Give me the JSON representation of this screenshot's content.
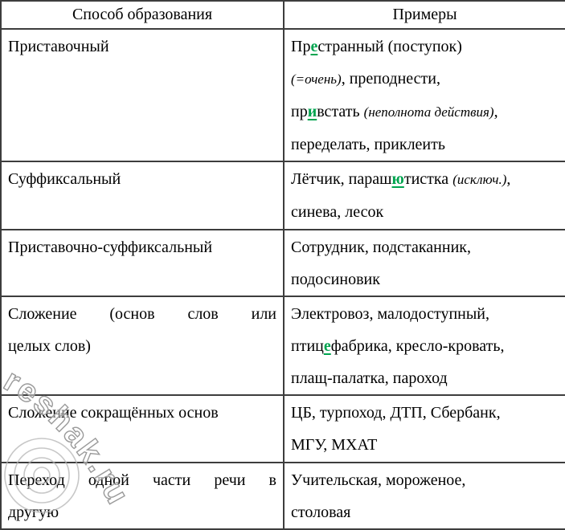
{
  "header": {
    "method_label": "Способ образования",
    "examples_label": "Примеры"
  },
  "colors": {
    "highlight_green": "#00a44f",
    "border": "#3d3d3d",
    "watermark": "#9a9a9a"
  },
  "watermark": {
    "text": "reshak.ru"
  },
  "rows": [
    {
      "method": {
        "lines": [
          "Приставочный"
        ],
        "justify": false
      },
      "examples": [
        [
          [
            "Пр",
            "n"
          ],
          [
            "е",
            "g"
          ],
          [
            "странный (поступок)",
            "n"
          ]
        ],
        [
          [
            "(=очень)",
            "i"
          ],
          [
            ", преподнести,",
            "n"
          ]
        ],
        [
          [
            "пр",
            "n"
          ],
          [
            "и",
            "g"
          ],
          [
            "встать ",
            "n"
          ],
          [
            "(неполнота действия)",
            "i"
          ],
          [
            ",",
            "n"
          ]
        ],
        [
          [
            "переделать, приклеить",
            "n"
          ]
        ]
      ]
    },
    {
      "method": {
        "lines": [
          "Суффиксальный"
        ],
        "justify": false
      },
      "examples": [
        [
          [
            "Лётчик, параш",
            "n"
          ],
          [
            "ю",
            "g"
          ],
          [
            "тистка ",
            "n"
          ],
          [
            "(исключ.)",
            "i"
          ],
          [
            ",",
            "n"
          ]
        ],
        [
          [
            "синева, лесок",
            "n"
          ]
        ]
      ]
    },
    {
      "method": {
        "lines": [
          "Приставочно-суффиксальный"
        ],
        "justify": false
      },
      "examples": [
        [
          [
            "Сотрудник, подстаканник,",
            "n"
          ]
        ],
        [
          [
            "подосиновик",
            "n"
          ]
        ]
      ]
    },
    {
      "method": {
        "lines": [
          "Сложение (основ слов или",
          "целых слов)"
        ],
        "justify": true
      },
      "examples": [
        [
          [
            "Электровоз, малодоступный,",
            "n"
          ]
        ],
        [
          [
            "птиц",
            "n"
          ],
          [
            "е",
            "g"
          ],
          [
            "фабрика, кресло-кровать,",
            "n"
          ]
        ],
        [
          [
            "плащ-палатка, пароход",
            "n"
          ]
        ]
      ]
    },
    {
      "method": {
        "lines": [
          "Сложение сокращённых основ"
        ],
        "justify": false
      },
      "examples": [
        [
          [
            "ЦБ, турпоход, ДТП, Сбербанк,",
            "n"
          ]
        ],
        [
          [
            "МГУ, МХАТ",
            "n"
          ]
        ]
      ]
    },
    {
      "method": {
        "lines": [
          "Переход одной части речи в",
          "другую"
        ],
        "justify": true
      },
      "examples": [
        [
          [
            "Учительская, мороженое,",
            "n"
          ]
        ],
        [
          [
            "столовая",
            "n"
          ]
        ]
      ]
    }
  ]
}
